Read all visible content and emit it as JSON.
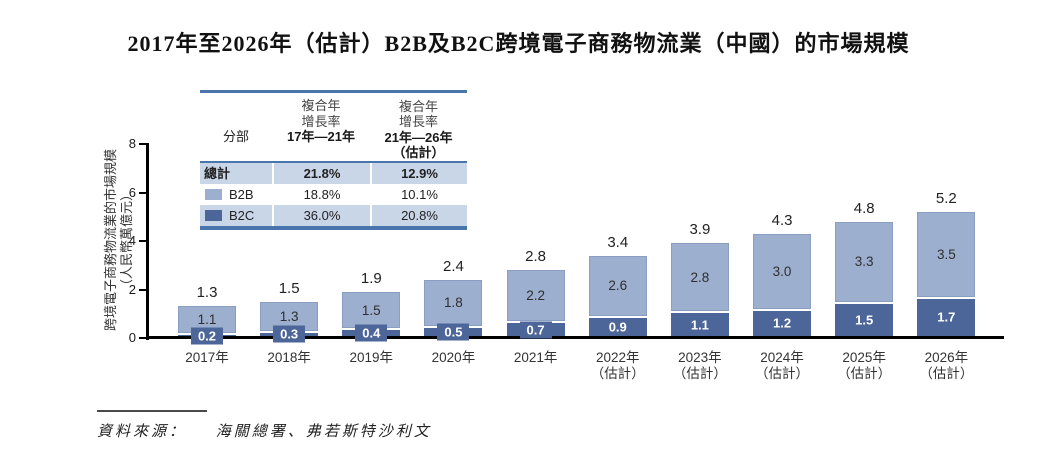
{
  "title": "2017年至2026年（估計）B2B及B2C跨境電子商務物流業（中國）的市場規模",
  "y_axis": {
    "title_line1": "跨境電子商務物流業的市場規模",
    "title_line2": "（人民幣萬億元）",
    "ticks": [
      "0",
      "2",
      "4",
      "6",
      "8"
    ]
  },
  "legend_table": {
    "segment_header": "分部",
    "cagr1_top": "複合年\n增長率",
    "cagr1_range": "17年—21年",
    "cagr2_top": "複合年\n增長率",
    "cagr2_range": "21年—26年\n（估計）",
    "rows": [
      {
        "label": "總計",
        "cagr1": "21.8%",
        "cagr2": "12.9%"
      },
      {
        "label": "B2B",
        "cagr1": "18.8%",
        "cagr2": "10.1%"
      },
      {
        "label": "B2C",
        "cagr1": "36.0%",
        "cagr2": "20.8%"
      }
    ]
  },
  "chart_data": {
    "type": "bar",
    "stacked": true,
    "title": "2017年至2026年（估計）B2B及B2C跨境電子商務物流業（中國）的市場規模",
    "ylabel": "跨境電子商務物流業的市場規模（人民幣萬億元）",
    "ylim": [
      0,
      8
    ],
    "grid": false,
    "legend_position": "upper-left-table",
    "categories": [
      {
        "line1": "2017年",
        "line2": ""
      },
      {
        "line1": "2018年",
        "line2": ""
      },
      {
        "line1": "2019年",
        "line2": ""
      },
      {
        "line1": "2020年",
        "line2": ""
      },
      {
        "line1": "2021年",
        "line2": ""
      },
      {
        "line1": "2022年",
        "line2": "（估計）"
      },
      {
        "line1": "2023年",
        "line2": "（估計）"
      },
      {
        "line1": "2024年",
        "line2": "（估計）"
      },
      {
        "line1": "2025年",
        "line2": "（估計）"
      },
      {
        "line1": "2026年",
        "line2": "（估計）"
      }
    ],
    "series": [
      {
        "name": "B2B",
        "values": [
          "1.1",
          "1.3",
          "1.5",
          "1.8",
          "2.2",
          "2.6",
          "2.8",
          "3.0",
          "3.3",
          "3.5"
        ]
      },
      {
        "name": "B2C",
        "values": [
          "0.2",
          "0.3",
          "0.4",
          "0.5",
          "0.7",
          "0.9",
          "1.1",
          "1.2",
          "1.5",
          "1.7"
        ]
      }
    ],
    "totals": [
      "1.3",
      "1.5",
      "1.9",
      "2.4",
      "2.8",
      "3.4",
      "3.9",
      "4.3",
      "4.8",
      "5.2"
    ]
  },
  "source": {
    "label": "資料來源：",
    "text": "海關總署、弗若斯特沙利文"
  },
  "colors": {
    "b2b": "#9DAFCE",
    "b2c": "#4D6699",
    "band": "#C9D6E8",
    "table_border": "#4974AC",
    "axis": "#000000"
  }
}
